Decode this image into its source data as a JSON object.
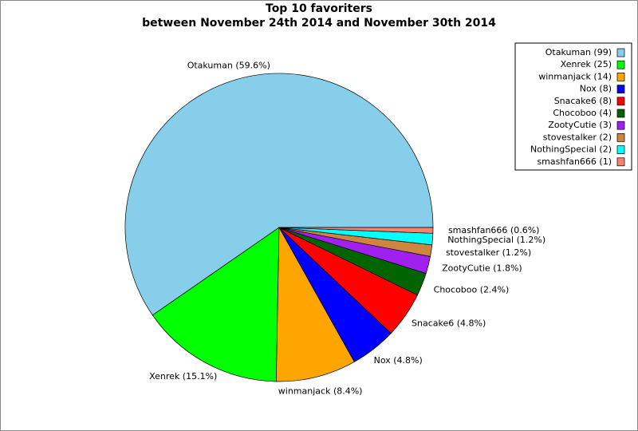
{
  "chart_data": {
    "type": "pie",
    "title": "Top 10 favoriters",
    "subtitle": "between November 24th 2014 and November 30th 2014",
    "categories": [
      "Otakuman",
      "Xenrek",
      "winmanjack",
      "Nox",
      "Snacake6",
      "Chocoboo",
      "ZootyCutie",
      "stovestalker",
      "NothingSpecial",
      "smashfan666"
    ],
    "values": [
      99,
      25,
      14,
      8,
      8,
      4,
      3,
      2,
      2,
      1
    ],
    "slice_labels": [
      "Otakuman (59.6%)",
      "Xenrek (15.1%)",
      "winmanjack (8.4%)",
      "Nox (4.8%)",
      "Snacake6 (4.8%)",
      "Chocoboo (2.4%)",
      "ZootyCutie (1.8%)",
      "stovestalker (1.2%)",
      "NothingSpecial (1.2%)",
      "smashfan666 (0.6%)"
    ],
    "legend_labels": [
      "Otakuman (99)",
      "Xenrek (25)",
      "winmanjack (14)",
      "Nox (8)",
      "Snacake6 (8)",
      "Chocoboo (4)",
      "ZootyCutie (3)",
      "stovestalker (2)",
      "NothingSpecial (2)",
      "smashfan666 (1)"
    ],
    "colors": [
      "#87ceeb",
      "#00ff00",
      "#ffa500",
      "#0000ff",
      "#ff0000",
      "#006400",
      "#a020f0",
      "#cd853f",
      "#00ffff",
      "#fa8072"
    ],
    "legend_position": "top-right"
  }
}
